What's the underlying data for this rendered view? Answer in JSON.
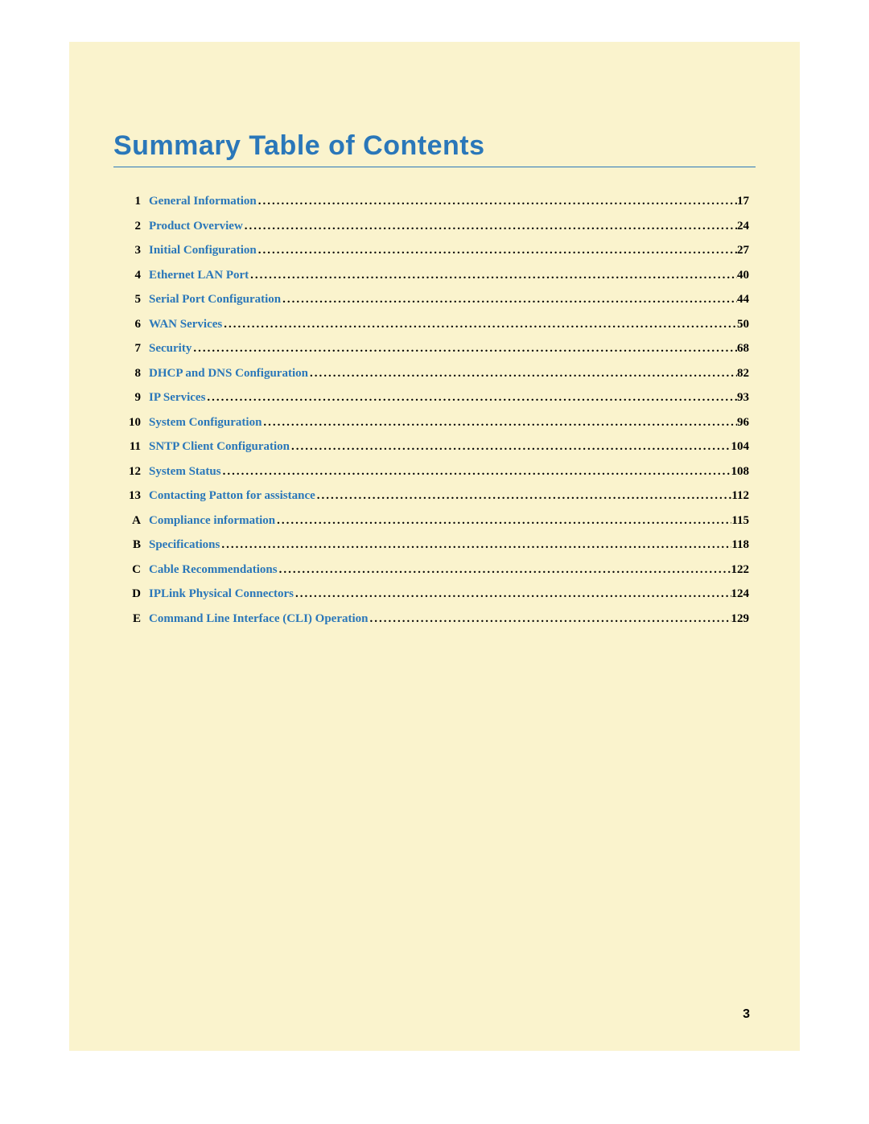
{
  "title": "Summary Table of Contents",
  "title_color": "#2a77b9",
  "title_fontsize": 34,
  "page_bg": "#faf3cd",
  "link_color": "#2a77b9",
  "text_color": "#000000",
  "entry_fontsize": 15,
  "page_number": "3",
  "entries": [
    {
      "num": "1",
      "label": "General Information",
      "page": "17"
    },
    {
      "num": "2",
      "label": "Product Overview",
      "page": "24"
    },
    {
      "num": "3",
      "label": "Initial Configuration",
      "page": "27"
    },
    {
      "num": "4",
      "label": "Ethernet LAN Port",
      "page": "40"
    },
    {
      "num": "5",
      "label": "Serial Port Configuration",
      "page": "44"
    },
    {
      "num": "6",
      "label": "WAN Services",
      "page": "50"
    },
    {
      "num": "7",
      "label": "Security",
      "page": "68"
    },
    {
      "num": "8",
      "label": "DHCP and DNS Configuration",
      "page": "82"
    },
    {
      "num": "9",
      "label": "IP Services",
      "page": "93"
    },
    {
      "num": "10",
      "label": "System Configuration",
      "page": "96"
    },
    {
      "num": "11",
      "label": "SNTP Client Configuration",
      "page": "104"
    },
    {
      "num": "12",
      "label": "System Status",
      "page": "108"
    },
    {
      "num": "13",
      "label": "Contacting Patton for assistance",
      "page": "112"
    },
    {
      "num": "A",
      "label": "Compliance information",
      "page": "115"
    },
    {
      "num": "B",
      "label": "Specifications",
      "page": "118"
    },
    {
      "num": "C",
      "label": "Cable Recommendations",
      "page": "122"
    },
    {
      "num": "D",
      "label": "IPLink Physical Connectors",
      "page": "124"
    },
    {
      "num": "E",
      "label": "Command Line Interface (CLI) Operation",
      "page": "129"
    }
  ]
}
